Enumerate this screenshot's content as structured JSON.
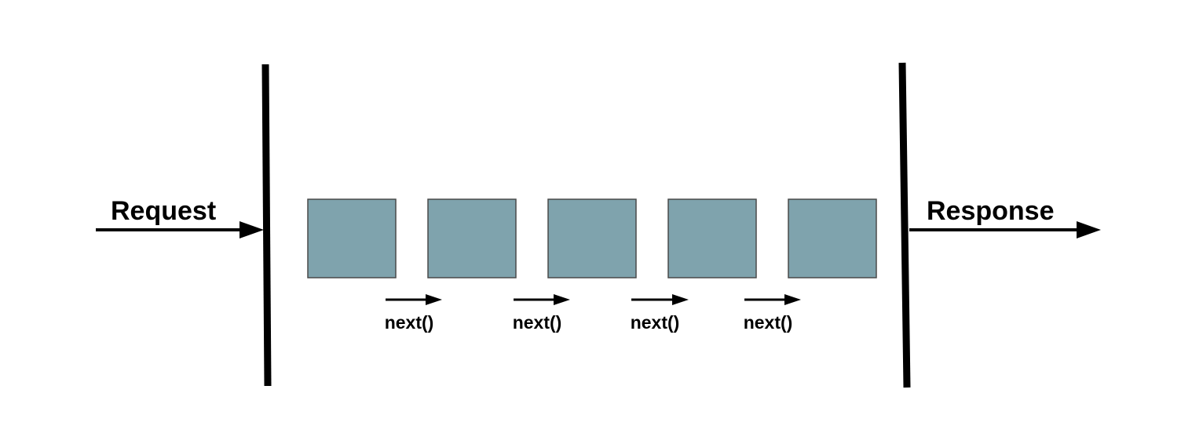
{
  "diagram": {
    "request_label": "Request",
    "response_label": "Response",
    "middleware_count": 5,
    "next_labels": [
      "next()",
      "next()",
      "next()",
      "next()"
    ],
    "colors": {
      "box_fill": "#7fa3ad",
      "box_stroke": "#4a4a4a",
      "line": "#000000",
      "background": "#ffffff"
    }
  }
}
